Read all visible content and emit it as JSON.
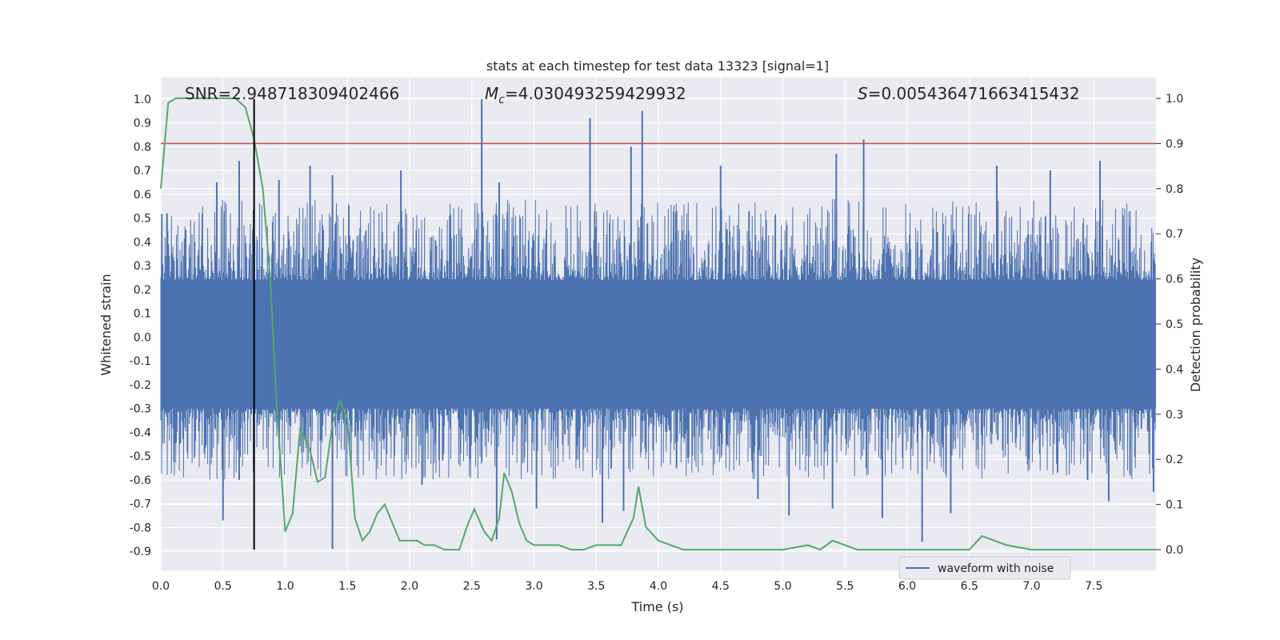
{
  "chart_data": {
    "type": "line",
    "title": "stats at each timestep for test data 13323 [signal=1]",
    "xlabel": "Time (s)",
    "ylabel_left": "Whitened strain",
    "ylabel_right": "Detection probability",
    "xlim": [
      0.0,
      8.0
    ],
    "ylim_left": [
      -0.98,
      1.09
    ],
    "ylim_right": [
      -0.046,
      1.046
    ],
    "x_ticks": [
      "0.0",
      "0.5",
      "1.0",
      "1.5",
      "2.0",
      "2.5",
      "3.0",
      "3.5",
      "4.0",
      "4.5",
      "5.0",
      "5.5",
      "6.0",
      "6.5",
      "7.0",
      "7.5"
    ],
    "y_left_ticks": [
      "1.0",
      "0.9",
      "0.8",
      "0.7",
      "0.6",
      "0.5",
      "0.4",
      "0.3",
      "0.2",
      "0.1",
      "0.0",
      "-0.1",
      "-0.2",
      "-0.3",
      "-0.4",
      "-0.5",
      "-0.6",
      "-0.7",
      "-0.8",
      "-0.9"
    ],
    "y_right_ticks": [
      "1.0",
      "0.9",
      "0.8",
      "0.7",
      "0.6",
      "0.5",
      "0.4",
      "0.3",
      "0.2",
      "0.1",
      "0.0"
    ],
    "annotations": {
      "snr": "SNR=2.948718309402466",
      "mc_symbol": "M",
      "mc_sub": "c",
      "mc_value": "=4.030493259429932",
      "s_symbol": "S",
      "s_value": "=0.005436471663415432"
    },
    "grid": true,
    "legend": {
      "placement": "lower-right",
      "label": "waveform with noise"
    },
    "colors": {
      "waveform": "#4c72b0",
      "probability": "#55a868",
      "threshold": "#c44e52",
      "marker": "#000000",
      "background": "#eaeaf2",
      "grid": "#ffffff"
    },
    "threshold_right": 0.9,
    "vertical_marker_x": 0.75,
    "waveform": {
      "name": "waveform with noise",
      "dense_band": [
        -0.3,
        0.24
      ],
      "spikes": [
        [
          0.05,
          0.52
        ],
        [
          0.2,
          0.45
        ],
        [
          0.45,
          0.65
        ],
        [
          0.63,
          0.74
        ],
        [
          0.63,
          -0.6
        ],
        [
          0.5,
          -0.77
        ],
        [
          0.95,
          0.66
        ],
        [
          1.2,
          0.72
        ],
        [
          1.38,
          0.68
        ],
        [
          1.38,
          -0.89
        ],
        [
          1.93,
          0.7
        ],
        [
          2.1,
          -0.62
        ],
        [
          2.58,
          1.0
        ],
        [
          2.7,
          -0.85
        ],
        [
          2.72,
          0.65
        ],
        [
          3.02,
          -0.72
        ],
        [
          3.45,
          0.92
        ],
        [
          3.55,
          -0.78
        ],
        [
          3.78,
          0.8
        ],
        [
          3.87,
          0.95
        ],
        [
          3.72,
          -0.73
        ],
        [
          4.5,
          0.72
        ],
        [
          4.8,
          -0.68
        ],
        [
          5.05,
          -0.75
        ],
        [
          5.43,
          0.77
        ],
        [
          5.65,
          0.83
        ],
        [
          5.4,
          -0.72
        ],
        [
          5.8,
          -0.76
        ],
        [
          6.12,
          -0.86
        ],
        [
          6.35,
          -0.74
        ],
        [
          6.72,
          0.72
        ],
        [
          7.15,
          0.7
        ],
        [
          7.55,
          0.74
        ],
        [
          7.45,
          -0.6
        ],
        [
          7.62,
          -0.69
        ],
        [
          7.98,
          -0.65
        ]
      ]
    },
    "probability": {
      "name": "detection probability",
      "x": [
        0.0,
        0.06,
        0.12,
        0.2,
        0.3,
        0.4,
        0.5,
        0.6,
        0.68,
        0.75,
        0.82,
        0.88,
        0.93,
        1.0,
        1.06,
        1.12,
        1.2,
        1.26,
        1.32,
        1.38,
        1.44,
        1.5,
        1.56,
        1.62,
        1.68,
        1.74,
        1.8,
        1.86,
        1.92,
        2.0,
        2.06,
        2.12,
        2.2,
        2.28,
        2.34,
        2.4,
        2.46,
        2.52,
        2.6,
        2.66,
        2.72,
        2.76,
        2.82,
        2.88,
        2.94,
        3.0,
        3.1,
        3.2,
        3.3,
        3.4,
        3.5,
        3.6,
        3.7,
        3.8,
        3.84,
        3.9,
        4.0,
        4.1,
        4.2,
        4.4,
        4.6,
        4.8,
        5.0,
        5.2,
        5.3,
        5.4,
        5.6,
        5.8,
        6.0,
        6.2,
        6.4,
        6.5,
        6.6,
        6.8,
        7.0,
        7.2,
        7.4,
        7.6,
        8.0
      ],
      "y": [
        0.8,
        0.99,
        1.0,
        1.0,
        1.0,
        1.0,
        1.0,
        1.0,
        0.98,
        0.91,
        0.8,
        0.6,
        0.33,
        0.04,
        0.08,
        0.27,
        0.22,
        0.15,
        0.16,
        0.28,
        0.33,
        0.29,
        0.07,
        0.02,
        0.04,
        0.08,
        0.1,
        0.06,
        0.02,
        0.02,
        0.02,
        0.01,
        0.01,
        0.0,
        0.0,
        0.0,
        0.05,
        0.09,
        0.04,
        0.02,
        0.07,
        0.17,
        0.13,
        0.06,
        0.02,
        0.01,
        0.01,
        0.01,
        0.0,
        0.0,
        0.01,
        0.01,
        0.01,
        0.07,
        0.14,
        0.05,
        0.02,
        0.01,
        0.0,
        0.0,
        0.0,
        0.0,
        0.0,
        0.01,
        0.0,
        0.02,
        0.0,
        0.0,
        0.0,
        0.0,
        0.0,
        0.0,
        0.03,
        0.01,
        0.0,
        0.0,
        0.0,
        0.0,
        0.0
      ]
    }
  }
}
